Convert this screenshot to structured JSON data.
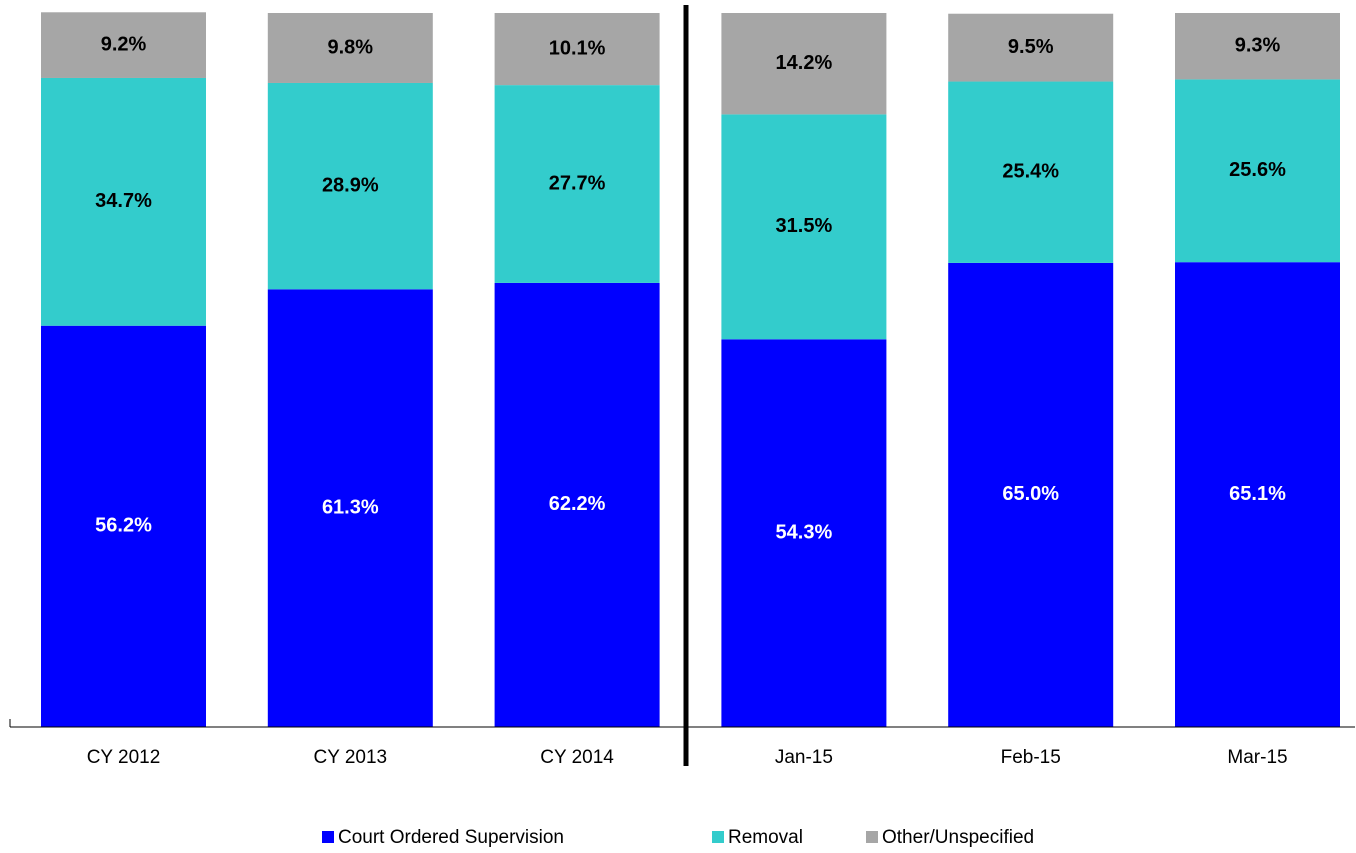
{
  "chart_data": {
    "type": "stacked_bar",
    "categories": [
      "CY 2012",
      "CY 2013",
      "CY 2014",
      "Jan-15",
      "Feb-15",
      "Mar-15"
    ],
    "ylim": [
      0,
      100
    ],
    "series": [
      {
        "name": "Court Ordered Supervision",
        "color": "#0000ff",
        "values": [
          56.2,
          61.3,
          62.2,
          54.3,
          65.0,
          65.1
        ],
        "value_labels": [
          "56.2%",
          "61.3%",
          "62.2%",
          "54.3%",
          "65.0%",
          "65.1%"
        ]
      },
      {
        "name": "Removal",
        "color": "#33cccc",
        "values": [
          34.7,
          28.9,
          27.7,
          31.5,
          25.4,
          25.6
        ],
        "value_labels": [
          "34.7%",
          "28.9%",
          "27.7%",
          "31.5%",
          "25.4%",
          "25.6%"
        ]
      },
      {
        "name": "Other/Unspecified",
        "color": "#a6a6a6",
        "values": [
          9.2,
          9.8,
          10.1,
          14.2,
          9.5,
          9.3
        ],
        "value_labels": [
          "9.2%",
          "9.8%",
          "10.1%",
          "14.2%",
          "9.5%",
          "9.3%"
        ]
      }
    ]
  }
}
